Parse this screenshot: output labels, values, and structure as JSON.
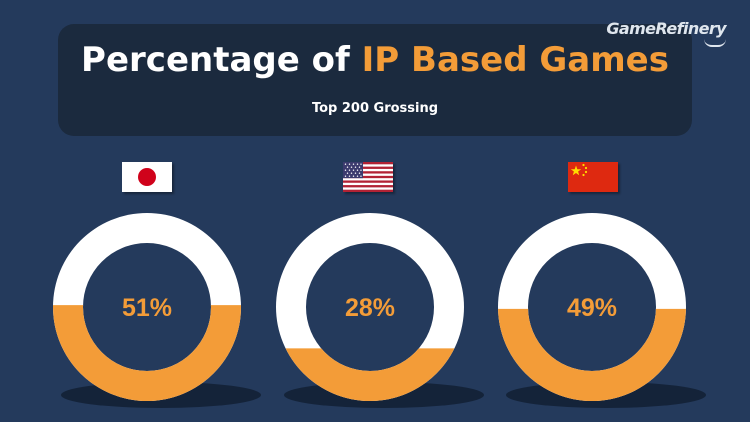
{
  "header": {
    "title_main": "Percentage of ",
    "title_highlight": "IP Based Games",
    "subtitle": "Top 200 Grossing"
  },
  "brand": {
    "name": "GameRefinery"
  },
  "colors": {
    "background": "#243a5c",
    "panel": "#1b2a3e",
    "accent": "#f39c38",
    "ring_empty": "#ffffff"
  },
  "chart_data": {
    "type": "pie",
    "categories": [
      "Japan",
      "United States",
      "China"
    ],
    "values": [
      51,
      28,
      49
    ],
    "labels": [
      "51%",
      "28%",
      "49%"
    ],
    "unit": "%",
    "icons": [
      "japan-flag-icon",
      "usa-flag-icon",
      "china-flag-icon"
    ]
  }
}
